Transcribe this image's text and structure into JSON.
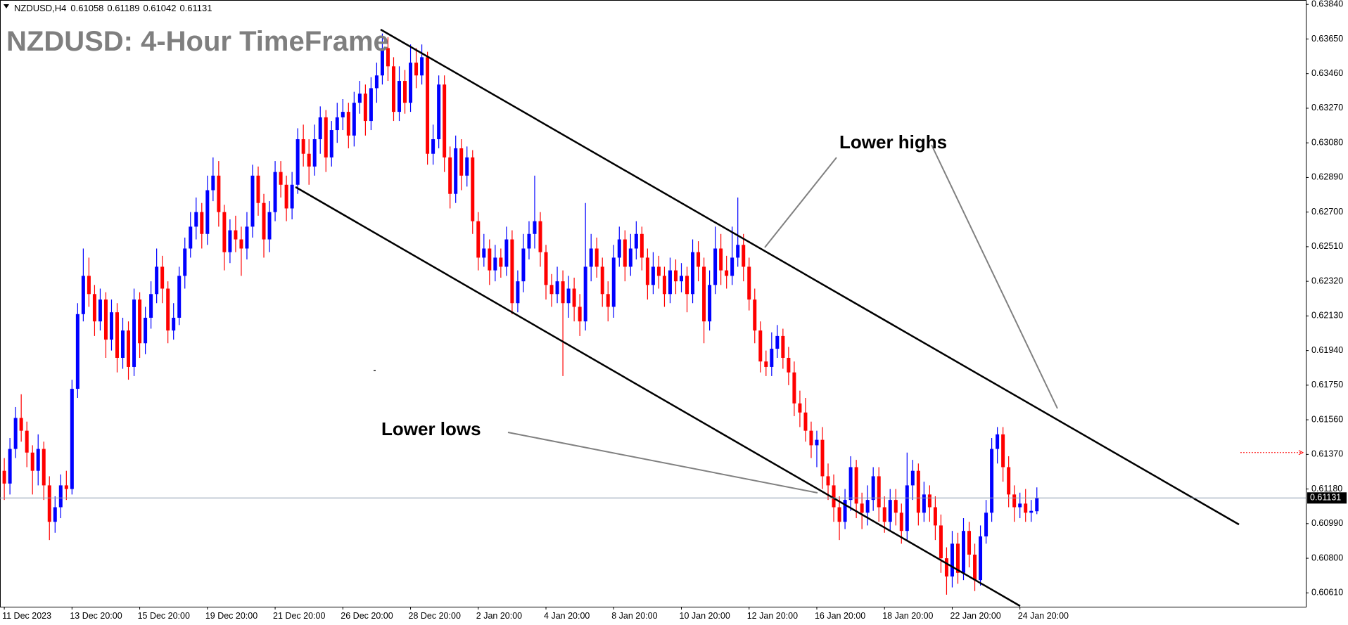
{
  "chart_data": {
    "type": "candlestick",
    "symbol": "NZDUSD,H4",
    "title": "NZDUSD: 4-Hour TimeFrame",
    "annotations": [
      "Lower highs",
      "Lower lows"
    ],
    "up_color": "#0000ff",
    "down_color": "#ff0000",
    "ylim": [
      0.60534,
      0.63864
    ],
    "yticks": [
      {
        "value": 0.6384,
        "label": "0.63840"
      },
      {
        "value": 0.6365,
        "label": "0.63650"
      },
      {
        "value": 0.6346,
        "label": "0.63460"
      },
      {
        "value": 0.6327,
        "label": "0.63270"
      },
      {
        "value": 0.6308,
        "label": "0.63080"
      },
      {
        "value": 0.6289,
        "label": "0.62890"
      },
      {
        "value": 0.627,
        "label": "0.62700"
      },
      {
        "value": 0.6251,
        "label": "0.62510"
      },
      {
        "value": 0.6232,
        "label": "0.62320"
      },
      {
        "value": 0.6213,
        "label": "0.62130"
      },
      {
        "value": 0.6194,
        "label": "0.61940"
      },
      {
        "value": 0.6175,
        "label": "0.61750"
      },
      {
        "value": 0.6156,
        "label": "0.61560"
      },
      {
        "value": 0.6137,
        "label": "0.61370"
      },
      {
        "value": 0.6118,
        "label": "0.61180"
      },
      {
        "value": 0.6099,
        "label": "0.60990"
      },
      {
        "value": 0.608,
        "label": "0.60800"
      },
      {
        "value": 0.6061,
        "label": "0.60610"
      }
    ],
    "last_price": 0.61131,
    "alert_level": 0.6138,
    "categories": [
      "11 Dec 2023",
      null,
      null,
      null,
      null,
      null,
      null,
      null,
      null,
      null,
      null,
      null,
      "13 Dec 20:00",
      null,
      null,
      null,
      null,
      null,
      null,
      null,
      null,
      null,
      null,
      null,
      "15 Dec 20:00",
      null,
      null,
      null,
      null,
      null,
      null,
      null,
      null,
      null,
      null,
      null,
      "19 Dec 20:00",
      null,
      null,
      null,
      null,
      null,
      null,
      null,
      null,
      null,
      null,
      null,
      "21 Dec 20:00",
      null,
      null,
      null,
      null,
      null,
      null,
      null,
      null,
      null,
      null,
      null,
      "26 Dec 20:00",
      null,
      null,
      null,
      null,
      null,
      null,
      null,
      null,
      null,
      null,
      null,
      "28 Dec 20:00",
      null,
      null,
      null,
      null,
      null,
      null,
      null,
      null,
      null,
      null,
      null,
      "2 Jan 20:00",
      null,
      null,
      null,
      null,
      null,
      null,
      null,
      null,
      null,
      null,
      null,
      "4 Jan 20:00",
      null,
      null,
      null,
      null,
      null,
      null,
      null,
      null,
      null,
      null,
      null,
      "8 Jan 20:00",
      null,
      null,
      null,
      null,
      null,
      null,
      null,
      null,
      null,
      null,
      null,
      "10 Jan 20:00",
      null,
      null,
      null,
      null,
      null,
      null,
      null,
      null,
      null,
      null,
      null,
      "12 Jan 20:00",
      null,
      null,
      null,
      null,
      null,
      null,
      null,
      null,
      null,
      null,
      null,
      "16 Jan 20:00",
      null,
      null,
      null,
      null,
      null,
      null,
      null,
      null,
      null,
      null,
      null,
      "18 Jan 20:00",
      null,
      null,
      null,
      null,
      null,
      null,
      null,
      null,
      null,
      null,
      null,
      "22 Jan 20:00",
      null,
      null,
      null,
      null,
      null,
      null,
      null,
      null,
      null,
      null,
      null,
      "24 Jan 20:00",
      null,
      null,
      null
    ],
    "ohlc": [
      [
        0.6128,
        0.6135,
        0.6112,
        0.6121
      ],
      [
        0.6121,
        0.6146,
        0.6115,
        0.614
      ],
      [
        0.614,
        0.6163,
        0.6135,
        0.6157
      ],
      [
        0.6157,
        0.617,
        0.6144,
        0.615
      ],
      [
        0.615,
        0.6155,
        0.613,
        0.6138
      ],
      [
        0.6138,
        0.6142,
        0.6115,
        0.6128
      ],
      [
        0.6128,
        0.6148,
        0.612,
        0.614
      ],
      [
        0.614,
        0.6144,
        0.6112,
        0.612
      ],
      [
        0.612,
        0.6125,
        0.609,
        0.61
      ],
      [
        0.61,
        0.6114,
        0.6094,
        0.6108
      ],
      [
        0.6108,
        0.6126,
        0.6102,
        0.612
      ],
      [
        0.612,
        0.6128,
        0.6112,
        0.6118
      ],
      [
        0.6118,
        0.6178,
        0.6115,
        0.6173
      ],
      [
        0.6173,
        0.622,
        0.6168,
        0.6214
      ],
      [
        0.6214,
        0.625,
        0.621,
        0.6235
      ],
      [
        0.6235,
        0.6245,
        0.6218,
        0.6225
      ],
      [
        0.6225,
        0.623,
        0.6202,
        0.621
      ],
      [
        0.621,
        0.6228,
        0.6205,
        0.6222
      ],
      [
        0.6222,
        0.6226,
        0.619,
        0.62
      ],
      [
        0.62,
        0.6222,
        0.6194,
        0.6215
      ],
      [
        0.6215,
        0.622,
        0.6182,
        0.619
      ],
      [
        0.619,
        0.6212,
        0.6184,
        0.6205
      ],
      [
        0.6205,
        0.621,
        0.6178,
        0.6185
      ],
      [
        0.6185,
        0.6228,
        0.618,
        0.6222
      ],
      [
        0.6222,
        0.6226,
        0.619,
        0.6198
      ],
      [
        0.6198,
        0.6218,
        0.6192,
        0.6212
      ],
      [
        0.6212,
        0.6232,
        0.6206,
        0.6225
      ],
      [
        0.6225,
        0.625,
        0.622,
        0.624
      ],
      [
        0.624,
        0.6246,
        0.622,
        0.6228
      ],
      [
        0.6228,
        0.6232,
        0.6198,
        0.6205
      ],
      [
        0.6205,
        0.622,
        0.62,
        0.6212
      ],
      [
        0.6212,
        0.624,
        0.6208,
        0.6235
      ],
      [
        0.6235,
        0.6256,
        0.6228,
        0.625
      ],
      [
        0.625,
        0.627,
        0.6245,
        0.6262
      ],
      [
        0.6262,
        0.6278,
        0.6255,
        0.627
      ],
      [
        0.627,
        0.6275,
        0.625,
        0.6258
      ],
      [
        0.6258,
        0.629,
        0.6252,
        0.6282
      ],
      [
        0.6282,
        0.63,
        0.6276,
        0.629
      ],
      [
        0.629,
        0.6298,
        0.6262,
        0.627
      ],
      [
        0.627,
        0.6274,
        0.6238,
        0.6248
      ],
      [
        0.6248,
        0.6266,
        0.6242,
        0.626
      ],
      [
        0.626,
        0.6268,
        0.6248,
        0.6255
      ],
      [
        0.6255,
        0.6262,
        0.6235,
        0.625
      ],
      [
        0.625,
        0.627,
        0.6244,
        0.6262
      ],
      [
        0.6262,
        0.6296,
        0.6256,
        0.629
      ],
      [
        0.629,
        0.6295,
        0.6268,
        0.6275
      ],
      [
        0.6275,
        0.628,
        0.6245,
        0.6255
      ],
      [
        0.6255,
        0.6276,
        0.6248,
        0.627
      ],
      [
        0.627,
        0.6298,
        0.6265,
        0.6292
      ],
      [
        0.6292,
        0.6298,
        0.6278,
        0.6285
      ],
      [
        0.6285,
        0.629,
        0.6265,
        0.6272
      ],
      [
        0.6272,
        0.6292,
        0.6266,
        0.6285
      ],
      [
        0.6285,
        0.6316,
        0.628,
        0.631
      ],
      [
        0.631,
        0.6318,
        0.6295,
        0.6302
      ],
      [
        0.6302,
        0.631,
        0.6285,
        0.6295
      ],
      [
        0.6295,
        0.6318,
        0.629,
        0.631
      ],
      [
        0.631,
        0.6328,
        0.6302,
        0.6322
      ],
      [
        0.6322,
        0.6326,
        0.6292,
        0.63
      ],
      [
        0.63,
        0.632,
        0.6295,
        0.6315
      ],
      [
        0.6315,
        0.633,
        0.6308,
        0.6322
      ],
      [
        0.6322,
        0.6332,
        0.6315,
        0.6325
      ],
      [
        0.6325,
        0.633,
        0.6305,
        0.6312
      ],
      [
        0.6312,
        0.6336,
        0.6306,
        0.633
      ],
      [
        0.633,
        0.6342,
        0.6324,
        0.6335
      ],
      [
        0.6335,
        0.634,
        0.6312,
        0.632
      ],
      [
        0.632,
        0.6344,
        0.6315,
        0.6338
      ],
      [
        0.6338,
        0.6352,
        0.633,
        0.6345
      ],
      [
        0.6345,
        0.6368,
        0.634,
        0.636
      ],
      [
        0.636,
        0.6366,
        0.6342,
        0.635
      ],
      [
        0.635,
        0.6355,
        0.632,
        0.6325
      ],
      [
        0.6325,
        0.635,
        0.632,
        0.6342
      ],
      [
        0.6342,
        0.6348,
        0.6324,
        0.633
      ],
      [
        0.633,
        0.6362,
        0.6325,
        0.6352
      ],
      [
        0.6352,
        0.636,
        0.6338,
        0.6345
      ],
      [
        0.6345,
        0.6362,
        0.634,
        0.6355
      ],
      [
        0.6355,
        0.6358,
        0.6296,
        0.6302
      ],
      [
        0.6302,
        0.6318,
        0.6296,
        0.631
      ],
      [
        0.631,
        0.6345,
        0.6305,
        0.634
      ],
      [
        0.634,
        0.6345,
        0.6292,
        0.63
      ],
      [
        0.63,
        0.6306,
        0.6272,
        0.628
      ],
      [
        0.628,
        0.6312,
        0.6275,
        0.6305
      ],
      [
        0.6305,
        0.631,
        0.6282,
        0.629
      ],
      [
        0.629,
        0.6306,
        0.6284,
        0.63
      ],
      [
        0.63,
        0.6304,
        0.6258,
        0.6265
      ],
      [
        0.6265,
        0.627,
        0.6238,
        0.6245
      ],
      [
        0.6245,
        0.6258,
        0.624,
        0.625
      ],
      [
        0.625,
        0.6255,
        0.623,
        0.6238
      ],
      [
        0.6238,
        0.6252,
        0.6232,
        0.6245
      ],
      [
        0.6245,
        0.625,
        0.6234,
        0.624
      ],
      [
        0.624,
        0.6262,
        0.6235,
        0.6255
      ],
      [
        0.6255,
        0.626,
        0.6214,
        0.622
      ],
      [
        0.622,
        0.6238,
        0.6215,
        0.6232
      ],
      [
        0.6232,
        0.6258,
        0.6226,
        0.625
      ],
      [
        0.625,
        0.6265,
        0.6244,
        0.6258
      ],
      [
        0.6258,
        0.629,
        0.625,
        0.6265
      ],
      [
        0.6265,
        0.627,
        0.624,
        0.6248
      ],
      [
        0.6248,
        0.6252,
        0.6222,
        0.623
      ],
      [
        0.623,
        0.6236,
        0.6218,
        0.6225
      ],
      [
        0.6225,
        0.624,
        0.622,
        0.6232
      ],
      [
        0.6232,
        0.6238,
        0.618,
        0.622
      ],
      [
        0.622,
        0.6235,
        0.6212,
        0.6228
      ],
      [
        0.6228,
        0.6234,
        0.621,
        0.6218
      ],
      [
        0.6218,
        0.6225,
        0.6202,
        0.621
      ],
      [
        0.621,
        0.6275,
        0.6205,
        0.624
      ],
      [
        0.624,
        0.6258,
        0.6232,
        0.625
      ],
      [
        0.625,
        0.6256,
        0.6234,
        0.624
      ],
      [
        0.624,
        0.6245,
        0.6218,
        0.6225
      ],
      [
        0.6225,
        0.6232,
        0.621,
        0.6218
      ],
      [
        0.6218,
        0.6252,
        0.6212,
        0.6245
      ],
      [
        0.6245,
        0.6262,
        0.624,
        0.6255
      ],
      [
        0.6255,
        0.626,
        0.6232,
        0.624
      ],
      [
        0.624,
        0.6258,
        0.6235,
        0.625
      ],
      [
        0.625,
        0.6265,
        0.6244,
        0.6258
      ],
      [
        0.6258,
        0.6262,
        0.6238,
        0.6245
      ],
      [
        0.6245,
        0.625,
        0.6222,
        0.623
      ],
      [
        0.623,
        0.6248,
        0.6225,
        0.624
      ],
      [
        0.624,
        0.6246,
        0.6228,
        0.6235
      ],
      [
        0.6235,
        0.624,
        0.6218,
        0.6225
      ],
      [
        0.6225,
        0.6245,
        0.622,
        0.6238
      ],
      [
        0.6238,
        0.6244,
        0.6225,
        0.6232
      ],
      [
        0.6232,
        0.6242,
        0.6226,
        0.6235
      ],
      [
        0.6235,
        0.624,
        0.6215,
        0.6225
      ],
      [
        0.6225,
        0.6255,
        0.622,
        0.6248
      ],
      [
        0.6248,
        0.6254,
        0.6232,
        0.624
      ],
      [
        0.624,
        0.6245,
        0.6198,
        0.621
      ],
      [
        0.621,
        0.6238,
        0.6205,
        0.623
      ],
      [
        0.623,
        0.6262,
        0.6225,
        0.625
      ],
      [
        0.625,
        0.6258,
        0.623,
        0.6238
      ],
      [
        0.6238,
        0.6246,
        0.6228,
        0.6235
      ],
      [
        0.6235,
        0.6262,
        0.623,
        0.6245
      ],
      [
        0.6245,
        0.6278,
        0.624,
        0.6252
      ],
      [
        0.6252,
        0.6258,
        0.6232,
        0.624
      ],
      [
        0.624,
        0.6245,
        0.6216,
        0.6222
      ],
      [
        0.6222,
        0.6228,
        0.6198,
        0.6205
      ],
      [
        0.6205,
        0.621,
        0.6182,
        0.6188
      ],
      [
        0.6188,
        0.6194,
        0.618,
        0.6185
      ],
      [
        0.6185,
        0.6204,
        0.618,
        0.6195
      ],
      [
        0.6195,
        0.6208,
        0.619,
        0.6202
      ],
      [
        0.6202,
        0.6206,
        0.6184,
        0.619
      ],
      [
        0.619,
        0.6196,
        0.6175,
        0.6182
      ],
      [
        0.6182,
        0.6188,
        0.6158,
        0.6165
      ],
      [
        0.6165,
        0.6172,
        0.6152,
        0.616
      ],
      [
        0.616,
        0.6168,
        0.6144,
        0.615
      ],
      [
        0.615,
        0.6155,
        0.6135,
        0.6142
      ],
      [
        0.6142,
        0.615,
        0.613,
        0.6145
      ],
      [
        0.6145,
        0.6152,
        0.6118,
        0.6125
      ],
      [
        0.6125,
        0.6132,
        0.6112,
        0.612
      ],
      [
        0.612,
        0.6126,
        0.61,
        0.6108
      ],
      [
        0.6108,
        0.6114,
        0.609,
        0.61
      ],
      [
        0.61,
        0.6118,
        0.6096,
        0.6112
      ],
      [
        0.6112,
        0.6136,
        0.6106,
        0.613
      ],
      [
        0.613,
        0.6134,
        0.6102,
        0.611
      ],
      [
        0.611,
        0.6116,
        0.6096,
        0.6105
      ],
      [
        0.6105,
        0.612,
        0.6098,
        0.6112
      ],
      [
        0.6112,
        0.613,
        0.6106,
        0.6125
      ],
      [
        0.6125,
        0.613,
        0.61,
        0.6108
      ],
      [
        0.6108,
        0.6114,
        0.6094,
        0.61
      ],
      [
        0.61,
        0.6118,
        0.6095,
        0.6112
      ],
      [
        0.6112,
        0.6118,
        0.6098,
        0.6105
      ],
      [
        0.6105,
        0.611,
        0.6088,
        0.6095
      ],
      [
        0.6095,
        0.6138,
        0.609,
        0.612
      ],
      [
        0.612,
        0.6134,
        0.6112,
        0.6128
      ],
      [
        0.6128,
        0.6132,
        0.6098,
        0.6105
      ],
      [
        0.6105,
        0.6122,
        0.61,
        0.6115
      ],
      [
        0.6115,
        0.612,
        0.61,
        0.6108
      ],
      [
        0.6108,
        0.6114,
        0.609,
        0.6098
      ],
      [
        0.6098,
        0.6104,
        0.6072,
        0.608
      ],
      [
        0.608,
        0.6086,
        0.606,
        0.607
      ],
      [
        0.607,
        0.6095,
        0.6064,
        0.6088
      ],
      [
        0.6088,
        0.6094,
        0.6066,
        0.6072
      ],
      [
        0.6072,
        0.6102,
        0.6068,
        0.6095
      ],
      [
        0.6095,
        0.61,
        0.6075,
        0.6082
      ],
      [
        0.6082,
        0.6088,
        0.6062,
        0.6068
      ],
      [
        0.6068,
        0.6098,
        0.6065,
        0.6092
      ],
      [
        0.6092,
        0.6112,
        0.6088,
        0.6105
      ],
      [
        0.6105,
        0.6146,
        0.61,
        0.614
      ],
      [
        0.614,
        0.6152,
        0.6132,
        0.6148
      ],
      [
        0.6148,
        0.6152,
        0.6122,
        0.613
      ],
      [
        0.613,
        0.6136,
        0.6108,
        0.6115
      ],
      [
        0.6115,
        0.612,
        0.61,
        0.6108
      ],
      [
        0.6108,
        0.6116,
        0.6102,
        0.611
      ],
      [
        0.611,
        0.6118,
        0.61,
        0.6105
      ],
      [
        0.6105,
        0.6112,
        0.61,
        0.6106
      ],
      [
        0.61058,
        0.61189,
        0.61042,
        0.61131
      ]
    ]
  }
}
